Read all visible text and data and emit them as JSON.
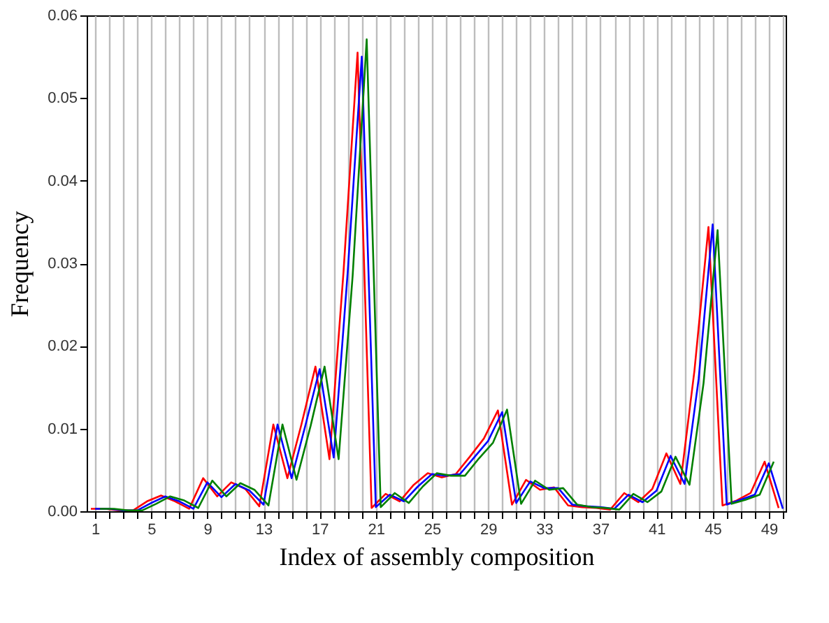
{
  "chart_data": {
    "type": "line",
    "xlabel": "Index of assembly composition",
    "ylabel": "Frequency",
    "xlim": [
      0.4,
      50.2
    ],
    "ylim": [
      0,
      0.06
    ],
    "xticks": [
      1,
      {
        "value": 2,
        "label": null
      },
      {
        "value": 3,
        "label": null
      },
      {
        "value": 4,
        "label": null
      },
      5,
      {
        "value": 6,
        "label": null
      },
      {
        "value": 7,
        "label": null
      },
      {
        "value": 8,
        "label": null
      },
      9,
      {
        "value": 10,
        "label": null
      },
      {
        "value": 11,
        "label": null
      },
      {
        "value": 12,
        "label": null
      },
      13,
      {
        "value": 14,
        "label": null
      },
      {
        "value": 15,
        "label": null
      },
      {
        "value": 16,
        "label": null
      },
      17,
      {
        "value": 18,
        "label": null
      },
      {
        "value": 19,
        "label": null
      },
      {
        "value": 20,
        "label": null
      },
      21,
      {
        "value": 22,
        "label": null
      },
      {
        "value": 23,
        "label": null
      },
      {
        "value": 24,
        "label": null
      },
      25,
      {
        "value": 26,
        "label": null
      },
      {
        "value": 27,
        "label": null
      },
      {
        "value": 28,
        "label": null
      },
      29,
      {
        "value": 30,
        "label": null
      },
      {
        "value": 31,
        "label": null
      },
      {
        "value": 32,
        "label": null
      },
      33,
      {
        "value": 34,
        "label": null
      },
      {
        "value": 35,
        "label": null
      },
      {
        "value": 36,
        "label": null
      },
      37,
      {
        "value": 38,
        "label": null
      },
      {
        "value": 39,
        "label": null
      },
      {
        "value": 40,
        "label": null
      },
      41,
      {
        "value": 42,
        "label": null
      },
      {
        "value": 43,
        "label": null
      },
      {
        "value": 44,
        "label": null
      },
      45,
      {
        "value": 46,
        "label": null
      },
      {
        "value": 47,
        "label": null
      },
      {
        "value": 48,
        "label": null
      },
      49,
      {
        "value": 50,
        "label": null
      }
    ],
    "yticks": [
      {
        "value": 0,
        "label": "0.00"
      },
      {
        "value": 0.01,
        "label": "0.01"
      },
      {
        "value": 0.02,
        "label": "0.02"
      },
      {
        "value": 0.03,
        "label": "0.03"
      },
      {
        "value": 0.04,
        "label": "0.04"
      },
      {
        "value": 0.05,
        "label": "0.05"
      },
      {
        "value": 0.06,
        "label": "0.06"
      }
    ],
    "grid": "x",
    "line_style": "solid",
    "series": [
      {
        "color": "#ff0000",
        "x": [
          0.7,
          1.7,
          2.7,
          3.7,
          4.7,
          5.7,
          6.7,
          7.7,
          8.7,
          9.7,
          10.7,
          11.7,
          12.7,
          13.7,
          14.7,
          15.7,
          16.7,
          17.7,
          18.7,
          19.7,
          20.7,
          21.7,
          22.7,
          23.7,
          24.7,
          25.7,
          26.7,
          27.7,
          28.7,
          29.7,
          30.7,
          31.7,
          32.7,
          33.7,
          34.7,
          35.7,
          36.7,
          37.7,
          38.7,
          39.7,
          40.7,
          41.7,
          42.7,
          43.7,
          44.7,
          45.7,
          46.7,
          47.7,
          48.7,
          49.7
        ],
        "values": [
          0.0003,
          0.0003,
          0.0001,
          0.0001,
          0.0012,
          0.0019,
          0.0012,
          0.0003,
          0.004,
          0.0018,
          0.0035,
          0.0027,
          0.0006,
          0.0105,
          0.004,
          0.0105,
          0.0175,
          0.0063,
          0.029,
          0.0555,
          0.0004,
          0.0021,
          0.0012,
          0.0032,
          0.0046,
          0.0041,
          0.0045,
          0.0066,
          0.0088,
          0.0122,
          0.0008,
          0.0038,
          0.0026,
          0.0029,
          0.0007,
          0.0005,
          0.0004,
          0.0002,
          0.0022,
          0.0011,
          0.0027,
          0.007,
          0.0033,
          0.017,
          0.0344,
          0.0007,
          0.0013,
          0.0022,
          0.006,
          0.0004
        ]
      },
      {
        "color": "#0000ff",
        "x": [
          1,
          2,
          3,
          4,
          5,
          6,
          7,
          8,
          9,
          10,
          11,
          12,
          13,
          14,
          15,
          16,
          17,
          18,
          19,
          20,
          21,
          22,
          23,
          24,
          25,
          26,
          27,
          28,
          29,
          30,
          31,
          32,
          33,
          34,
          35,
          36,
          37,
          38,
          39,
          40,
          41,
          42,
          43,
          44,
          45,
          46,
          47,
          48,
          49,
          50
        ],
        "values": [
          0.0003,
          0.0003,
          0.0001,
          0.0001,
          0.001,
          0.0018,
          0.0012,
          0.0003,
          0.0035,
          0.0017,
          0.0033,
          0.0025,
          0.0008,
          0.0105,
          0.004,
          0.0105,
          0.0172,
          0.0065,
          0.029,
          0.055,
          0.0005,
          0.002,
          0.0012,
          0.003,
          0.0045,
          0.0043,
          0.0045,
          0.0065,
          0.0085,
          0.012,
          0.001,
          0.0036,
          0.0028,
          0.0028,
          0.0008,
          0.0006,
          0.0005,
          0.0003,
          0.002,
          0.0011,
          0.0025,
          0.0067,
          0.0033,
          0.016,
          0.0347,
          0.0008,
          0.0014,
          0.002,
          0.0058,
          0.0003
        ]
      },
      {
        "color": "#008000",
        "x": [
          1.35,
          2.35,
          3.35,
          4.35,
          5.35,
          6.35,
          7.35,
          8.35,
          9.35,
          10.35,
          11.35,
          12.35,
          13.35,
          14.35,
          15.35,
          16.35,
          17.35,
          18.35,
          19.35,
          20.35,
          21.35,
          22.35,
          23.35,
          24.35,
          25.35,
          26.35,
          27.35,
          28.35,
          29.35,
          30.35,
          31.35,
          32.35,
          33.35,
          34.35,
          35.35,
          36.35,
          37.35,
          38.35,
          39.35,
          40.35,
          41.35,
          42.35,
          43.35,
          44.35,
          45.35,
          46.35,
          47.35,
          48.35,
          49.35
        ],
        "values": [
          0.0003,
          0.0003,
          0.0001,
          0.0001,
          0.0009,
          0.0018,
          0.0013,
          0.0004,
          0.0037,
          0.0018,
          0.0034,
          0.0026,
          0.0007,
          0.0105,
          0.0038,
          0.0103,
          0.0175,
          0.0063,
          0.0285,
          0.0571,
          0.0005,
          0.0022,
          0.001,
          0.003,
          0.0046,
          0.0043,
          0.0043,
          0.0064,
          0.0083,
          0.0123,
          0.0009,
          0.0037,
          0.0026,
          0.0028,
          0.0008,
          0.0005,
          0.0004,
          0.0002,
          0.0021,
          0.0011,
          0.0024,
          0.0066,
          0.0032,
          0.0155,
          0.034,
          0.0009,
          0.0014,
          0.002,
          0.006
        ]
      }
    ]
  }
}
